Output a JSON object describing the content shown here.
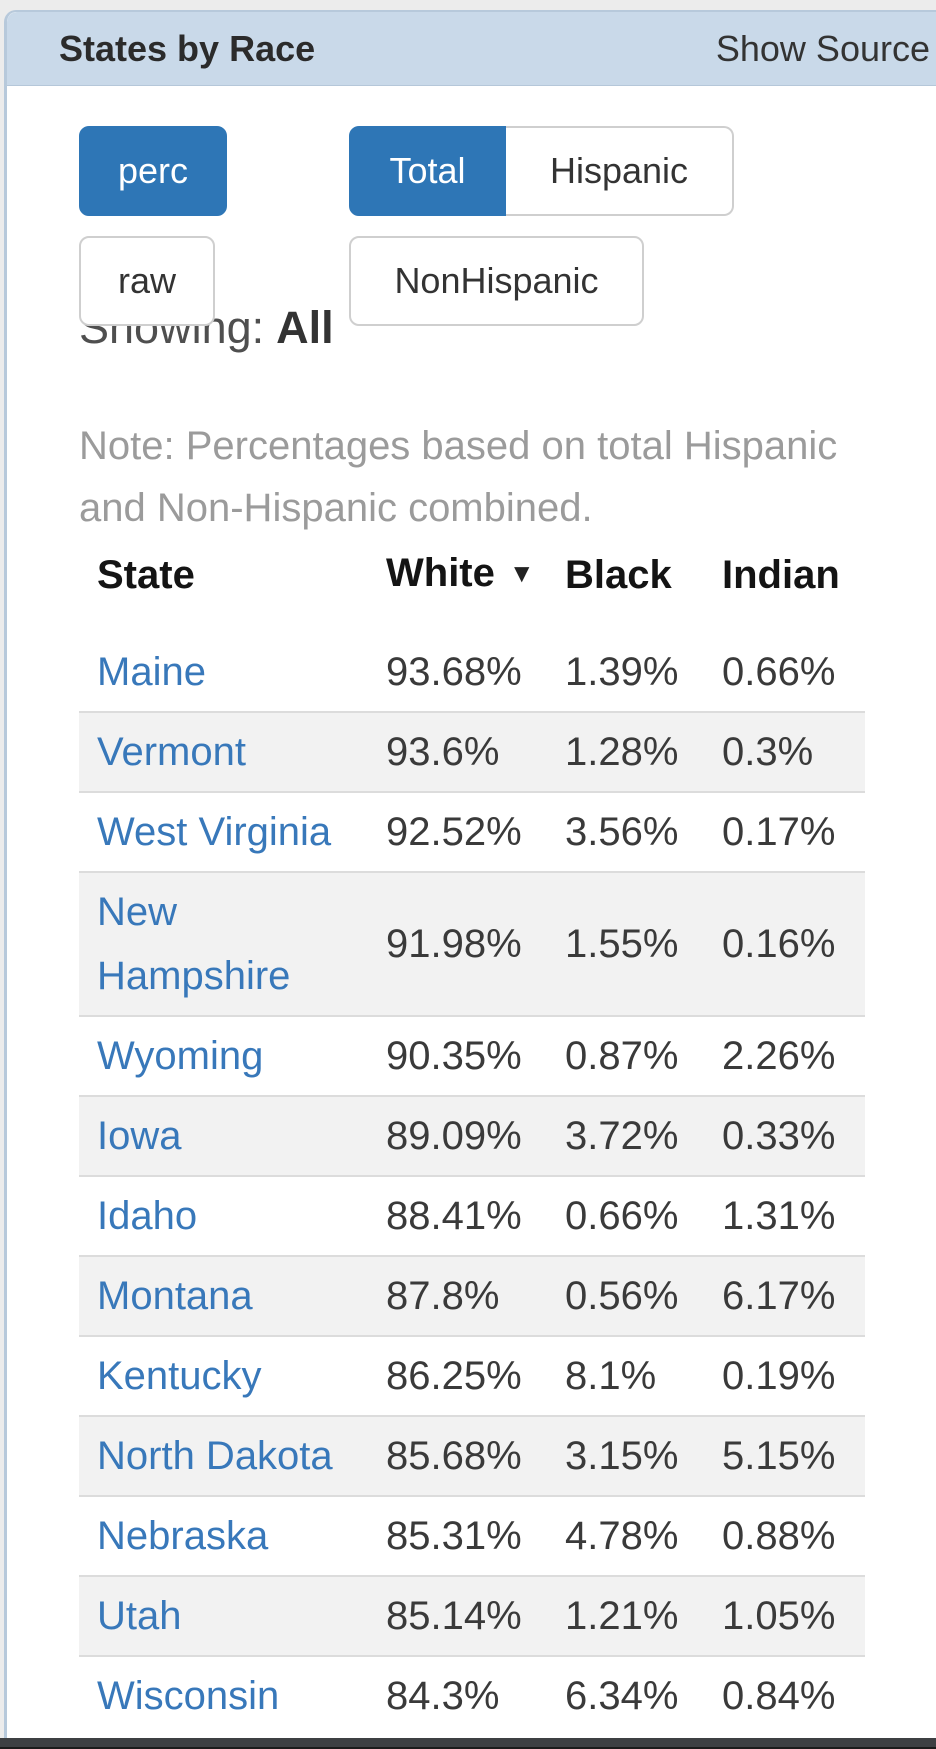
{
  "header": {
    "title": "States by Race",
    "action_label": "Show Source"
  },
  "controls": {
    "metric": {
      "options": [
        {
          "label": "perc",
          "active": true
        },
        {
          "label": "raw",
          "active": false
        }
      ]
    },
    "population": {
      "options": [
        {
          "label": "Total",
          "active": true
        },
        {
          "label": "Hispanic",
          "active": false
        },
        {
          "label": "NonHispanic",
          "active": false
        }
      ]
    }
  },
  "showing": {
    "label": "Showing:",
    "value": "All"
  },
  "note": {
    "text": "Note: Percentages based on total Hispanic and Non-Hispanic combined."
  },
  "table": {
    "columns": [
      {
        "label": "State",
        "sorted": false
      },
      {
        "label": "White",
        "sorted": true,
        "sort_direction": "desc"
      },
      {
        "label": "Black",
        "sorted": false
      },
      {
        "label": "Indian",
        "sorted": false
      }
    ],
    "sort_icon": "▼",
    "rows": [
      {
        "state": "Maine",
        "white": "93.68%",
        "black": "1.39%",
        "indian": "0.66%"
      },
      {
        "state": "Vermont",
        "white": "93.6%",
        "black": "1.28%",
        "indian": "0.3%"
      },
      {
        "state": "West Virginia",
        "white": "92.52%",
        "black": "3.56%",
        "indian": "0.17%"
      },
      {
        "state": "New Hampshire",
        "white": "91.98%",
        "black": "1.55%",
        "indian": "0.16%"
      },
      {
        "state": "Wyoming",
        "white": "90.35%",
        "black": "0.87%",
        "indian": "2.26%"
      },
      {
        "state": "Iowa",
        "white": "89.09%",
        "black": "3.72%",
        "indian": "0.33%"
      },
      {
        "state": "Idaho",
        "white": "88.41%",
        "black": "0.66%",
        "indian": "1.31%"
      },
      {
        "state": "Montana",
        "white": "87.8%",
        "black": "0.56%",
        "indian": "6.17%"
      },
      {
        "state": "Kentucky",
        "white": "86.25%",
        "black": "8.1%",
        "indian": "0.19%"
      },
      {
        "state": "North Dakota",
        "white": "85.68%",
        "black": "3.15%",
        "indian": "5.15%"
      },
      {
        "state": "Nebraska",
        "white": "85.31%",
        "black": "4.78%",
        "indian": "0.88%"
      },
      {
        "state": "Utah",
        "white": "85.14%",
        "black": "1.21%",
        "indian": "1.05%"
      },
      {
        "state": "Wisconsin",
        "white": "84.3%",
        "black": "6.34%",
        "indian": "0.84%"
      }
    ]
  },
  "colors": {
    "accent_blue": "#2e76b6",
    "panel_header_bg": "#c9d9e9",
    "panel_border": "#b7c9db",
    "link_blue": "#3878ba",
    "stripe_bg": "#f2f2f2",
    "note_gray": "#9b9b9b",
    "bottom_bar": "#3e4043"
  }
}
